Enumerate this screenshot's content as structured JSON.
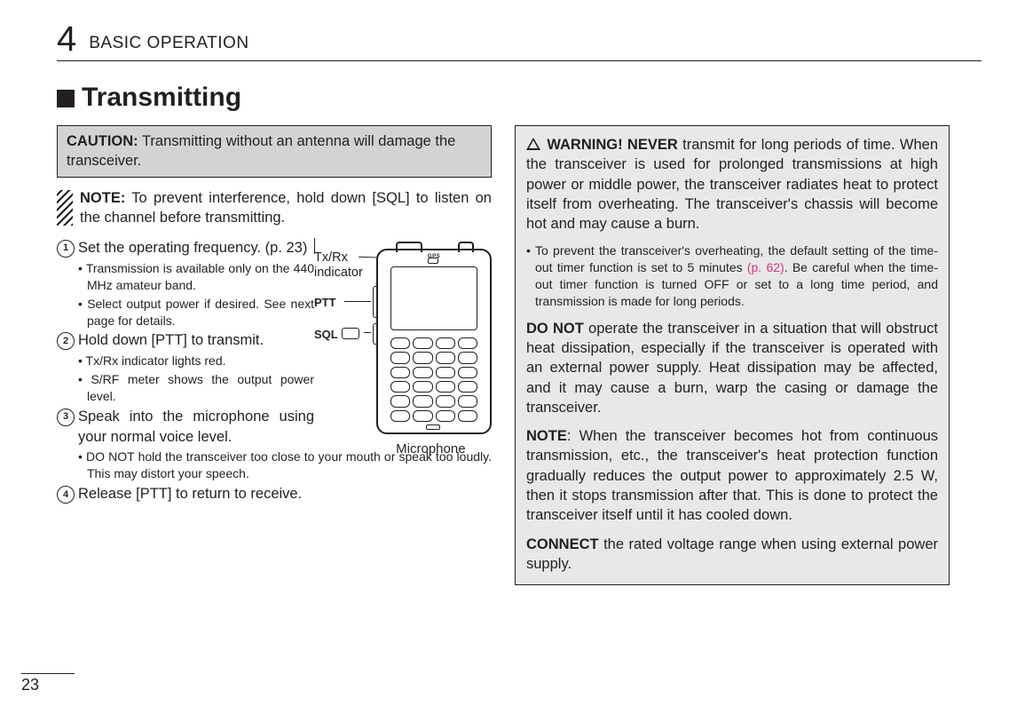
{
  "chapter_number": "4",
  "chapter_title": "BASIC OPERATION",
  "section_marker": "■",
  "section_title": "Transmitting",
  "page_number": "23",
  "caution": {
    "label": "CAUTION:",
    "text": " Transmitting without an antenna will damage the transceiver."
  },
  "note": {
    "label": "NOTE:",
    "text": " To prevent interference, hold down [SQL] to listen on the channel before transmitting."
  },
  "steps": {
    "s1": {
      "num": "1",
      "text": "Set the operating frequency. (p. 23)",
      "sub1": "Transmission is available only on the 440 MHz amateur band.",
      "sub2": "Select output power if desired. See next page for details."
    },
    "s2": {
      "num": "2",
      "text": "Hold down [PTT] to transmit.",
      "sub1": "Tx/Rx indicator lights red.",
      "sub2": "S/RF meter shows the output power level."
    },
    "s3": {
      "num": "3",
      "text": "Speak into the microphone using your normal voice level.",
      "sub1": "DO NOT hold the transceiver too close to your mouth or speak too loudly. This may distort your speech."
    },
    "s4": {
      "num": "4",
      "text": "Release [PTT] to return to receive."
    }
  },
  "device_labels": {
    "txrx_line1": "Tx/Rx",
    "txrx_line2": "indicator",
    "ptt": "PTT",
    "sql": "SQL",
    "mic": "Microphone",
    "gps": "GPS"
  },
  "warning": {
    "head_label": "WARNING! NEVER",
    "head_text": " transmit for long periods of time. When the transceiver is used for prolonged transmissions at high power or middle power, the transceiver radiates heat to protect itself from overheating. The transceiver's chassis will become hot and may cause a burn.",
    "bullet_pre": "To prevent the transceiver's overheating, the default setting of the time-out timer function is set to 5 minutes ",
    "bullet_link": "(p. 62)",
    "bullet_post": ". Be careful when the time-out timer function is turned OFF or set to a long time period, and transmission is made for long periods.",
    "p2_label": "DO NOT",
    "p2_text": " operate the transceiver in a situation that will obstruct heat dissipation, especially if the transceiver is operated with an external power supply. Heat dissipation may be affected, and it may cause a burn, warp the casing or damage the transceiver.",
    "p3_label": "NOTE",
    "p3_text": ": When the transceiver becomes hot from continuous transmission, etc., the transceiver's heat protection function gradually reduces the output power to approximately 2.5 W, then it stops transmission after that. This is done to protect the transceiver itself until it has cooled down.",
    "p4_label": "CONNECT",
    "p4_text": " the rated voltage range when using external power supply."
  },
  "colors": {
    "text": "#231f20",
    "page_bg": "#ffffff",
    "caution_bg": "#d3d3d3",
    "warning_bg": "#e8e8e8",
    "link": "#d63384"
  }
}
